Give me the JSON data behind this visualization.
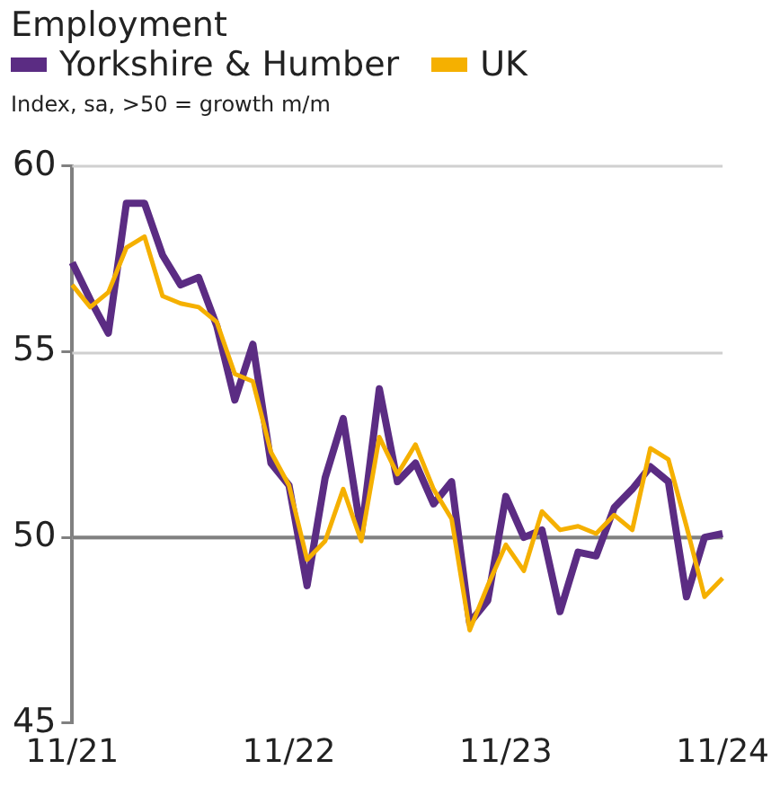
{
  "chart_data": {
    "type": "line",
    "title": "Employment",
    "subtitle": "Index, sa, >50 = growth m/m",
    "categories": [
      "11/21",
      null,
      null,
      null,
      null,
      null,
      null,
      null,
      null,
      null,
      null,
      null,
      "11/22",
      null,
      null,
      null,
      null,
      null,
      null,
      null,
      null,
      null,
      null,
      null,
      "11/23",
      null,
      null,
      null,
      null,
      null,
      null,
      null,
      null,
      null,
      null,
      null,
      "11/24"
    ],
    "series": [
      {
        "name": "Yorkshire & Humber",
        "color": "#5b2c83",
        "values": [
          57.4,
          56.4,
          55.5,
          59.0,
          59.0,
          57.6,
          56.8,
          57.0,
          55.7,
          53.7,
          55.2,
          52.0,
          51.4,
          48.7,
          51.6,
          53.2,
          50.1,
          54.0,
          51.5,
          52.0,
          50.9,
          51.5,
          47.7,
          48.3,
          51.1,
          50.0,
          50.2,
          48.0,
          49.6,
          49.5,
          50.8,
          51.3,
          51.9,
          51.5,
          48.4,
          50.0,
          50.1
        ]
      },
      {
        "name": "UK",
        "color": "#f5b000",
        "values": [
          56.8,
          56.2,
          56.6,
          57.8,
          58.1,
          56.5,
          56.3,
          56.2,
          55.8,
          54.4,
          54.2,
          52.3,
          51.4,
          49.4,
          49.9,
          51.3,
          49.9,
          52.7,
          51.7,
          52.5,
          51.3,
          50.5,
          47.5,
          48.7,
          49.8,
          49.1,
          50.7,
          50.2,
          50.3,
          50.1,
          50.6,
          50.2,
          52.4,
          52.1,
          50.3,
          48.4,
          48.9
        ]
      }
    ],
    "ylim": [
      45,
      60
    ],
    "yticks": [
      45,
      50,
      55,
      60
    ],
    "grid": "y",
    "legend": "top left",
    "marker": "none",
    "line_style": "solid",
    "ref_lines": [
      {
        "axis": "y",
        "value": 50,
        "color": "#808080"
      }
    ]
  }
}
